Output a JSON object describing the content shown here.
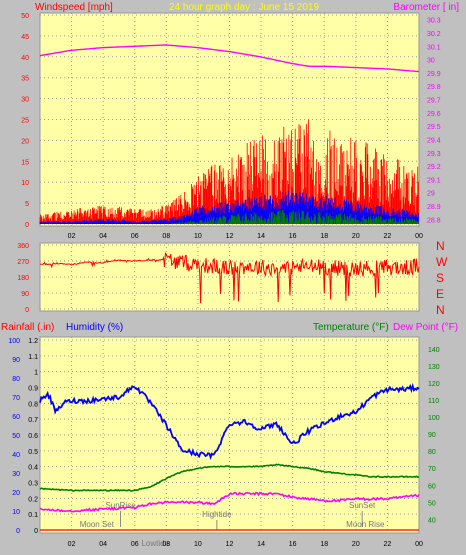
{
  "header": {
    "left": "Windspeed [mph]",
    "center": "24 hour graph day : June 15 2019",
    "right": "Barometer [ in]"
  },
  "colors": {
    "plot_bg": "#ffffa8",
    "frame_bg": "#c0c0c0",
    "wind": "#ff0000",
    "gust": "#ff0000",
    "avg_wind": "#0000ff",
    "low_wind": "#008000",
    "barometer": "#ff00ff",
    "direction": "#ff0000",
    "humidity": "#0000ff",
    "temperature": "#008000",
    "dewpoint": "#ff00ff",
    "rain": "#ff0000",
    "axis_text_left": "#ff0000",
    "axis_text_right": "#ff00ff",
    "humidity_axis": "#0000ff",
    "temp_axis": "#008000"
  },
  "chart_data": [
    {
      "type": "line",
      "title": "24 hour graph day : June 15 2019",
      "ylabel": "Windspeed [mph]",
      "y2label": "Barometer [ in]",
      "x_ticks": [
        "02",
        "04",
        "06",
        "08",
        "10",
        "12",
        "14",
        "16",
        "18",
        "20",
        "22",
        "00"
      ],
      "y_ticks": [
        "0",
        "5",
        "10",
        "15",
        "20",
        "25",
        "30",
        "35",
        "40",
        "45",
        "50"
      ],
      "y2_ticks": [
        "28.8",
        "28.9",
        "29",
        "29.1",
        "29.2",
        "29.3",
        "29.4",
        "29.5",
        "29.6",
        "29.7",
        "29.8",
        "29.9",
        "30",
        "30.1",
        "30.2",
        "30.3"
      ],
      "ylim": [
        0,
        50
      ],
      "y2lim": [
        28.75,
        30.35
      ],
      "series": [
        {
          "name": "Barometer",
          "axis": "right",
          "x": [
            0,
            2,
            4,
            6,
            8,
            9,
            10,
            12,
            14,
            16,
            17,
            18,
            20,
            22,
            24
          ],
          "values": [
            30.03,
            30.07,
            30.09,
            30.1,
            30.11,
            30.1,
            30.09,
            30.06,
            30.02,
            29.97,
            29.95,
            29.95,
            29.94,
            29.93,
            29.91
          ]
        },
        {
          "name": "Wind gust (upper envelope)",
          "x": [
            0,
            2,
            4,
            6,
            7,
            8,
            9,
            10,
            11,
            12,
            13,
            14,
            15,
            16,
            17,
            18,
            19,
            20,
            21,
            22,
            23,
            24
          ],
          "values": [
            2,
            3,
            4,
            3,
            3,
            4,
            6,
            10,
            12,
            14,
            16,
            18,
            20,
            20,
            21,
            19,
            18,
            17,
            16,
            15,
            12,
            10
          ]
        },
        {
          "name": "Wind average",
          "x": [
            0,
            2,
            4,
            6,
            8,
            9,
            10,
            12,
            14,
            16,
            18,
            20,
            22,
            24
          ],
          "values": [
            0.5,
            0.5,
            1,
            0.5,
            1,
            1.5,
            3,
            4,
            5,
            6,
            5,
            4,
            3,
            2
          ]
        },
        {
          "name": "Wind low",
          "x": [
            0,
            8,
            9,
            10,
            12,
            14,
            16,
            18,
            20,
            22,
            24
          ],
          "values": [
            0,
            0,
            0.5,
            1,
            2,
            2.5,
            3,
            2.5,
            2,
            1.5,
            1
          ]
        }
      ]
    },
    {
      "type": "line",
      "ylabel": "Wind direction",
      "y_ticks": [
        "0",
        "90",
        "180",
        "270",
        "360"
      ],
      "y2_ticks": [
        "N",
        "W",
        "S",
        "E",
        "N"
      ],
      "ylim": [
        0,
        360
      ],
      "series": [
        {
          "name": "Wind direction",
          "x": [
            0,
            1,
            2,
            3,
            4,
            5,
            6,
            7,
            8,
            9,
            10,
            11,
            12,
            13,
            14,
            15,
            16,
            17,
            18,
            19,
            20,
            21,
            22,
            23,
            24
          ],
          "values": [
            250,
            255,
            250,
            265,
            260,
            275,
            270,
            275,
            280,
            260,
            250,
            240,
            230,
            240,
            235,
            230,
            235,
            240,
            235,
            230,
            225,
            230,
            235,
            230,
            240
          ]
        }
      ]
    },
    {
      "type": "line",
      "left_label_1": "Rainfall (.in)",
      "left_label_2": "Humidity (%)",
      "right_label_1": "Temperature (°F)",
      "right_label_2": "Dew Point (°F)",
      "x_ticks": [
        "02",
        "04",
        "06",
        "08",
        "10",
        "12",
        "14",
        "16",
        "18",
        "20",
        "22",
        "00"
      ],
      "humidity_ticks": [
        "0",
        "10",
        "20",
        "30",
        "40",
        "50",
        "60",
        "70",
        "80",
        "90",
        "100"
      ],
      "rain_ticks": [
        "0",
        "0.1",
        "0.2",
        "0.3",
        "0.4",
        "0.5",
        "0.6",
        "0.7",
        "0.8",
        "0.9",
        "1",
        "1.1",
        "1.2"
      ],
      "temp_ticks": [
        "40",
        "50",
        "60",
        "70",
        "80",
        "90",
        "100",
        "110",
        "120",
        "130",
        "140"
      ],
      "humidity_ylim": [
        0,
        100
      ],
      "rain_ylim": [
        0,
        1.2
      ],
      "temp_ylim": [
        32,
        147
      ],
      "annotations": [
        "SunRise",
        "Moon Set",
        "Lowtide",
        "Hightide",
        "SunSet",
        "Moon Rise"
      ],
      "series": [
        {
          "name": "Humidity",
          "x": [
            0,
            0.5,
            1,
            1.5,
            2,
            3,
            4,
            5,
            6,
            7,
            8,
            9,
            10,
            11,
            12,
            13,
            14,
            15,
            16,
            17,
            18,
            19,
            20,
            21,
            22,
            23,
            24
          ],
          "values": [
            68,
            72,
            62,
            67,
            68,
            68,
            69,
            70,
            76,
            67,
            55,
            42,
            40,
            39,
            56,
            57,
            53,
            56,
            45,
            52,
            56,
            60,
            62,
            70,
            74,
            74,
            75
          ]
        },
        {
          "name": "Temperature",
          "x": [
            0,
            2,
            4,
            6,
            7,
            8,
            9,
            10,
            11,
            12,
            13,
            14,
            15,
            16,
            17,
            18,
            19,
            20,
            21,
            22,
            23,
            24
          ],
          "values": [
            58,
            57,
            57,
            57,
            59,
            64,
            68,
            70,
            71,
            71,
            71,
            71,
            72,
            71,
            70,
            68,
            67,
            66,
            65,
            65,
            65,
            65
          ]
        },
        {
          "name": "Dew Point",
          "x": [
            0,
            2,
            4,
            6,
            7,
            8,
            9,
            10,
            11,
            12,
            13,
            14,
            15,
            16,
            17,
            18,
            19,
            20,
            21,
            22,
            23,
            24
          ],
          "values": [
            46,
            45,
            46,
            47,
            49,
            50,
            50,
            50,
            49,
            55,
            55,
            55,
            55,
            53,
            52,
            51,
            51,
            52,
            52,
            52,
            53,
            54
          ]
        },
        {
          "name": "Rainfall",
          "x": [
            0,
            24
          ],
          "values": [
            0,
            0
          ]
        }
      ]
    }
  ]
}
